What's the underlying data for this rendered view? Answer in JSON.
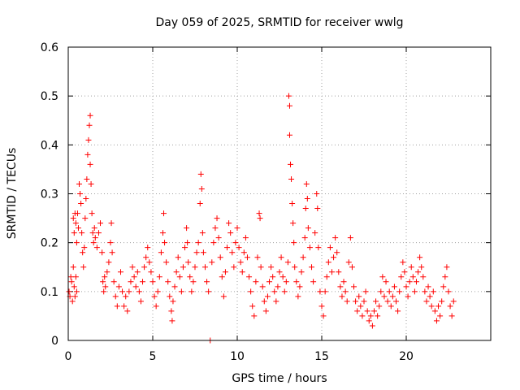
{
  "chart_data": {
    "type": "scatter",
    "title": "Day 059 of 2025, SRMTID for receiver wwlg",
    "xlabel": "GPS time / hours",
    "ylabel": "SRMTID / TECUs",
    "xlim": [
      0,
      25
    ],
    "ylim": [
      0,
      0.6
    ],
    "xticks": [
      0,
      5,
      10,
      15,
      20
    ],
    "xtick_labels": [
      "0",
      "5",
      "10",
      "15",
      "20"
    ],
    "yticks": [
      0,
      0.1,
      0.2,
      0.3,
      0.4,
      0.5,
      0.6
    ],
    "ytick_labels": [
      "0",
      "0.1",
      "0.2",
      "0.3",
      "0.4",
      "0.5",
      "0.6"
    ],
    "grid": true,
    "marker": "+",
    "series": [
      {
        "name": "SRMTID",
        "color": "#ff0000",
        "points": [
          [
            0.05,
            0.1
          ],
          [
            0.1,
            0.09
          ],
          [
            0.15,
            0.13
          ],
          [
            0.2,
            0.12
          ],
          [
            0.25,
            0.08
          ],
          [
            0.3,
            0.15
          ],
          [
            0.35,
            0.11
          ],
          [
            0.4,
            0.09
          ],
          [
            0.45,
            0.13
          ],
          [
            0.5,
            0.1
          ],
          [
            0.3,
            0.25
          ],
          [
            0.35,
            0.22
          ],
          [
            0.4,
            0.26
          ],
          [
            0.45,
            0.24
          ],
          [
            0.5,
            0.2
          ],
          [
            0.55,
            0.26
          ],
          [
            0.6,
            0.23
          ],
          [
            0.65,
            0.32
          ],
          [
            0.7,
            0.3
          ],
          [
            0.75,
            0.28
          ],
          [
            0.8,
            0.22
          ],
          [
            0.85,
            0.18
          ],
          [
            0.9,
            0.15
          ],
          [
            0.95,
            0.19
          ],
          [
            1.0,
            0.25
          ],
          [
            1.05,
            0.29
          ],
          [
            1.1,
            0.33
          ],
          [
            1.15,
            0.38
          ],
          [
            1.2,
            0.41
          ],
          [
            1.25,
            0.44
          ],
          [
            1.3,
            0.46
          ],
          [
            1.3,
            0.36
          ],
          [
            1.35,
            0.32
          ],
          [
            1.4,
            0.26
          ],
          [
            1.45,
            0.22
          ],
          [
            1.5,
            0.2
          ],
          [
            1.55,
            0.23
          ],
          [
            1.6,
            0.21
          ],
          [
            1.7,
            0.19
          ],
          [
            1.8,
            0.22
          ],
          [
            1.9,
            0.24
          ],
          [
            2.0,
            0.18
          ],
          [
            2.05,
            0.12
          ],
          [
            2.1,
            0.1
          ],
          [
            2.15,
            0.13
          ],
          [
            2.2,
            0.11
          ],
          [
            2.3,
            0.14
          ],
          [
            2.4,
            0.16
          ],
          [
            2.5,
            0.2
          ],
          [
            2.55,
            0.24
          ],
          [
            2.6,
            0.18
          ],
          [
            2.7,
            0.12
          ],
          [
            2.8,
            0.09
          ],
          [
            2.9,
            0.07
          ],
          [
            3.0,
            0.11
          ],
          [
            3.1,
            0.14
          ],
          [
            3.2,
            0.1
          ],
          [
            3.3,
            0.07
          ],
          [
            3.4,
            0.09
          ],
          [
            3.5,
            0.06
          ],
          [
            3.6,
            0.1
          ],
          [
            3.7,
            0.12
          ],
          [
            3.8,
            0.15
          ],
          [
            3.9,
            0.13
          ],
          [
            4.0,
            0.11
          ],
          [
            4.1,
            0.14
          ],
          [
            4.2,
            0.1
          ],
          [
            4.3,
            0.08
          ],
          [
            4.4,
            0.12
          ],
          [
            4.5,
            0.15
          ],
          [
            4.6,
            0.17
          ],
          [
            4.7,
            0.19
          ],
          [
            4.8,
            0.16
          ],
          [
            4.9,
            0.14
          ],
          [
            5.0,
            0.12
          ],
          [
            5.1,
            0.09
          ],
          [
            5.2,
            0.07
          ],
          [
            5.3,
            0.1
          ],
          [
            5.4,
            0.13
          ],
          [
            5.5,
            0.18
          ],
          [
            5.6,
            0.22
          ],
          [
            5.65,
            0.26
          ],
          [
            5.7,
            0.2
          ],
          [
            5.8,
            0.16
          ],
          [
            5.9,
            0.12
          ],
          [
            6.0,
            0.09
          ],
          [
            6.1,
            0.06
          ],
          [
            6.15,
            0.04
          ],
          [
            6.2,
            0.08
          ],
          [
            6.3,
            0.11
          ],
          [
            6.4,
            0.14
          ],
          [
            6.5,
            0.17
          ],
          [
            6.6,
            0.13
          ],
          [
            6.7,
            0.1
          ],
          [
            6.8,
            0.15
          ],
          [
            6.9,
            0.19
          ],
          [
            7.0,
            0.23
          ],
          [
            7.05,
            0.2
          ],
          [
            7.1,
            0.16
          ],
          [
            7.2,
            0.13
          ],
          [
            7.3,
            0.1
          ],
          [
            7.4,
            0.12
          ],
          [
            7.5,
            0.15
          ],
          [
            7.6,
            0.18
          ],
          [
            7.7,
            0.2
          ],
          [
            7.8,
            0.28
          ],
          [
            7.85,
            0.34
          ],
          [
            7.9,
            0.31
          ],
          [
            7.95,
            0.22
          ],
          [
            8.0,
            0.18
          ],
          [
            8.1,
            0.15
          ],
          [
            8.2,
            0.12
          ],
          [
            8.3,
            0.1
          ],
          [
            8.4,
            0.0
          ],
          [
            8.5,
            0.16
          ],
          [
            8.6,
            0.2
          ],
          [
            8.7,
            0.23
          ],
          [
            8.8,
            0.25
          ],
          [
            8.9,
            0.21
          ],
          [
            9.0,
            0.17
          ],
          [
            9.1,
            0.13
          ],
          [
            9.2,
            0.09
          ],
          [
            9.3,
            0.14
          ],
          [
            9.4,
            0.19
          ],
          [
            9.5,
            0.24
          ],
          [
            9.6,
            0.22
          ],
          [
            9.7,
            0.18
          ],
          [
            9.8,
            0.15
          ],
          [
            9.9,
            0.2
          ],
          [
            10.0,
            0.23
          ],
          [
            10.1,
            0.19
          ],
          [
            10.2,
            0.16
          ],
          [
            10.3,
            0.14
          ],
          [
            10.4,
            0.18
          ],
          [
            10.5,
            0.21
          ],
          [
            10.6,
            0.17
          ],
          [
            10.7,
            0.13
          ],
          [
            10.8,
            0.1
          ],
          [
            10.9,
            0.07
          ],
          [
            11.0,
            0.05
          ],
          [
            11.1,
            0.12
          ],
          [
            11.2,
            0.17
          ],
          [
            11.3,
            0.26
          ],
          [
            11.35,
            0.25
          ],
          [
            11.4,
            0.15
          ],
          [
            11.5,
            0.11
          ],
          [
            11.6,
            0.08
          ],
          [
            11.7,
            0.06
          ],
          [
            11.8,
            0.09
          ],
          [
            11.9,
            0.12
          ],
          [
            12.0,
            0.15
          ],
          [
            12.1,
            0.13
          ],
          [
            12.2,
            0.1
          ],
          [
            12.3,
            0.08
          ],
          [
            12.4,
            0.11
          ],
          [
            12.5,
            0.14
          ],
          [
            12.6,
            0.17
          ],
          [
            12.7,
            0.13
          ],
          [
            12.8,
            0.1
          ],
          [
            12.9,
            0.12
          ],
          [
            13.0,
            0.16
          ],
          [
            13.05,
            0.5
          ],
          [
            13.1,
            0.48
          ],
          [
            13.1,
            0.42
          ],
          [
            13.15,
            0.36
          ],
          [
            13.2,
            0.33
          ],
          [
            13.25,
            0.28
          ],
          [
            13.3,
            0.24
          ],
          [
            13.35,
            0.2
          ],
          [
            13.4,
            0.15
          ],
          [
            13.5,
            0.12
          ],
          [
            13.6,
            0.09
          ],
          [
            13.7,
            0.11
          ],
          [
            13.8,
            0.14
          ],
          [
            13.9,
            0.17
          ],
          [
            14.0,
            0.21
          ],
          [
            14.05,
            0.27
          ],
          [
            14.1,
            0.32
          ],
          [
            14.15,
            0.29
          ],
          [
            14.2,
            0.23
          ],
          [
            14.3,
            0.19
          ],
          [
            14.4,
            0.15
          ],
          [
            14.5,
            0.12
          ],
          [
            14.6,
            0.22
          ],
          [
            14.7,
            0.3
          ],
          [
            14.75,
            0.27
          ],
          [
            14.8,
            0.19
          ],
          [
            14.9,
            0.1
          ],
          [
            15.0,
            0.07
          ],
          [
            15.1,
            0.05
          ],
          [
            15.2,
            0.1
          ],
          [
            15.3,
            0.13
          ],
          [
            15.4,
            0.16
          ],
          [
            15.5,
            0.19
          ],
          [
            15.6,
            0.14
          ],
          [
            15.7,
            0.17
          ],
          [
            15.8,
            0.21
          ],
          [
            15.9,
            0.18
          ],
          [
            16.0,
            0.14
          ],
          [
            16.1,
            0.11
          ],
          [
            16.2,
            0.09
          ],
          [
            16.3,
            0.12
          ],
          [
            16.4,
            0.1
          ],
          [
            16.5,
            0.08
          ],
          [
            16.6,
            0.16
          ],
          [
            16.7,
            0.21
          ],
          [
            16.8,
            0.15
          ],
          [
            16.9,
            0.11
          ],
          [
            17.0,
            0.08
          ],
          [
            17.1,
            0.06
          ],
          [
            17.2,
            0.09
          ],
          [
            17.3,
            0.07
          ],
          [
            17.4,
            0.05
          ],
          [
            17.5,
            0.08
          ],
          [
            17.6,
            0.1
          ],
          [
            17.7,
            0.06
          ],
          [
            17.8,
            0.04
          ],
          [
            17.9,
            0.05
          ],
          [
            18.0,
            0.03
          ],
          [
            18.1,
            0.06
          ],
          [
            18.2,
            0.08
          ],
          [
            18.3,
            0.05
          ],
          [
            18.4,
            0.07
          ],
          [
            18.5,
            0.1
          ],
          [
            18.6,
            0.13
          ],
          [
            18.7,
            0.09
          ],
          [
            18.8,
            0.12
          ],
          [
            18.9,
            0.08
          ],
          [
            19.0,
            0.1
          ],
          [
            19.1,
            0.07
          ],
          [
            19.2,
            0.09
          ],
          [
            19.3,
            0.11
          ],
          [
            19.4,
            0.08
          ],
          [
            19.5,
            0.06
          ],
          [
            19.6,
            0.1
          ],
          [
            19.7,
            0.13
          ],
          [
            19.8,
            0.16
          ],
          [
            19.9,
            0.14
          ],
          [
            20.0,
            0.11
          ],
          [
            20.1,
            0.09
          ],
          [
            20.2,
            0.12
          ],
          [
            20.3,
            0.15
          ],
          [
            20.4,
            0.13
          ],
          [
            20.5,
            0.1
          ],
          [
            20.6,
            0.12
          ],
          [
            20.7,
            0.14
          ],
          [
            20.8,
            0.17
          ],
          [
            20.9,
            0.15
          ],
          [
            21.0,
            0.13
          ],
          [
            21.1,
            0.1
          ],
          [
            21.2,
            0.08
          ],
          [
            21.3,
            0.11
          ],
          [
            21.4,
            0.09
          ],
          [
            21.5,
            0.07
          ],
          [
            21.6,
            0.1
          ],
          [
            21.7,
            0.06
          ],
          [
            21.8,
            0.04
          ],
          [
            21.9,
            0.07
          ],
          [
            22.0,
            0.05
          ],
          [
            22.1,
            0.08
          ],
          [
            22.2,
            0.11
          ],
          [
            22.3,
            0.13
          ],
          [
            22.4,
            0.15
          ],
          [
            22.5,
            0.1
          ],
          [
            22.6,
            0.07
          ],
          [
            22.7,
            0.05
          ],
          [
            22.8,
            0.08
          ]
        ]
      }
    ]
  }
}
